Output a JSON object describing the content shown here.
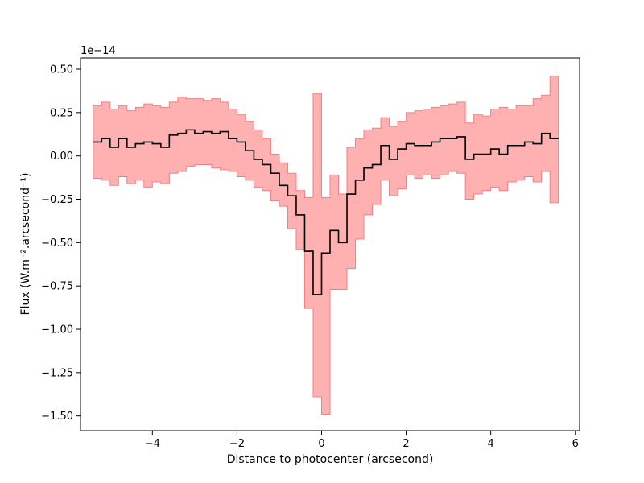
{
  "chart_data": {
    "type": "line",
    "style": "step",
    "xlabel": "Distance to photocenter (arcsecond)",
    "ylabel": "Flux (W.m⁻².arcsecond⁻¹)",
    "y_offset_label": "1e−14",
    "xlim": [
      -5.7,
      6.1
    ],
    "ylim": [
      -1.585,
      0.565
    ],
    "x_ticks": [
      -4,
      -2,
      0,
      2,
      4,
      6
    ],
    "x_tick_labels": [
      "−4",
      "−2",
      "0",
      "2",
      "4",
      "6"
    ],
    "y_ticks": [
      -1.5,
      -1.25,
      -1.0,
      -0.75,
      -0.5,
      -0.25,
      0.0,
      0.25,
      0.5
    ],
    "y_tick_labels": [
      "−1.50",
      "−1.25",
      "−1.00",
      "−0.75",
      "−0.50",
      "−0.25",
      "0.00",
      "0.25",
      "0.50"
    ],
    "grid": false,
    "colors": {
      "line": "#000000",
      "band_fill": "#ffb0b0",
      "band_edge": "#f08080"
    },
    "x": [
      -5.3,
      -5.1,
      -4.9,
      -4.7,
      -4.5,
      -4.3,
      -4.1,
      -3.9,
      -3.7,
      -3.5,
      -3.3,
      -3.1,
      -2.9,
      -2.7,
      -2.5,
      -2.3,
      -2.1,
      -1.9,
      -1.7,
      -1.5,
      -1.3,
      -1.1,
      -0.9,
      -0.7,
      -0.5,
      -0.3,
      -0.1,
      0.1,
      0.3,
      0.5,
      0.7,
      0.9,
      1.1,
      1.3,
      1.5,
      1.7,
      1.9,
      2.1,
      2.3,
      2.5,
      2.7,
      2.9,
      3.1,
      3.3,
      3.5,
      3.7,
      3.9,
      4.1,
      4.3,
      4.5,
      4.7,
      4.9,
      5.1,
      5.3,
      5.5
    ],
    "series": [
      {
        "values": [
          0.08,
          0.1,
          0.05,
          0.1,
          0.05,
          0.07,
          0.08,
          0.07,
          0.05,
          0.12,
          0.13,
          0.15,
          0.13,
          0.14,
          0.13,
          0.14,
          0.1,
          0.08,
          0.03,
          -0.02,
          -0.05,
          -0.1,
          -0.17,
          -0.23,
          -0.34,
          -0.55,
          -0.8,
          -0.56,
          -0.43,
          -0.5,
          -0.22,
          -0.14,
          -0.07,
          -0.05,
          0.06,
          -0.02,
          0.04,
          0.07,
          0.06,
          0.06,
          0.08,
          0.1,
          0.1,
          0.11,
          -0.02,
          0.01,
          0.01,
          0.04,
          0.01,
          0.06,
          0.06,
          0.08,
          0.07,
          0.13,
          0.1
        ]
      }
    ],
    "band": {
      "upper": [
        0.29,
        0.31,
        0.27,
        0.29,
        0.26,
        0.28,
        0.3,
        0.29,
        0.28,
        0.31,
        0.34,
        0.33,
        0.33,
        0.32,
        0.33,
        0.31,
        0.27,
        0.24,
        0.2,
        0.15,
        0.1,
        0.01,
        -0.04,
        -0.1,
        -0.2,
        -0.24,
        0.36,
        -0.24,
        -0.11,
        -0.22,
        0.05,
        0.1,
        0.15,
        0.16,
        0.22,
        0.17,
        0.2,
        0.25,
        0.26,
        0.27,
        0.28,
        0.29,
        0.3,
        0.31,
        0.19,
        0.24,
        0.23,
        0.27,
        0.28,
        0.27,
        0.29,
        0.29,
        0.33,
        0.35,
        0.46
      ],
      "lower": [
        -0.13,
        -0.14,
        -0.17,
        -0.12,
        -0.16,
        -0.14,
        -0.18,
        -0.15,
        -0.16,
        -0.1,
        -0.09,
        -0.06,
        -0.05,
        -0.05,
        -0.07,
        -0.08,
        -0.09,
        -0.12,
        -0.14,
        -0.18,
        -0.2,
        -0.26,
        -0.29,
        -0.42,
        -0.54,
        -0.88,
        -1.39,
        -1.49,
        -0.77,
        -0.77,
        -0.65,
        -0.48,
        -0.34,
        -0.28,
        -0.14,
        -0.23,
        -0.19,
        -0.11,
        -0.13,
        -0.11,
        -0.13,
        -0.11,
        -0.09,
        -0.1,
        -0.25,
        -0.22,
        -0.2,
        -0.18,
        -0.2,
        -0.15,
        -0.14,
        -0.12,
        -0.15,
        -0.09,
        -0.27
      ]
    }
  }
}
